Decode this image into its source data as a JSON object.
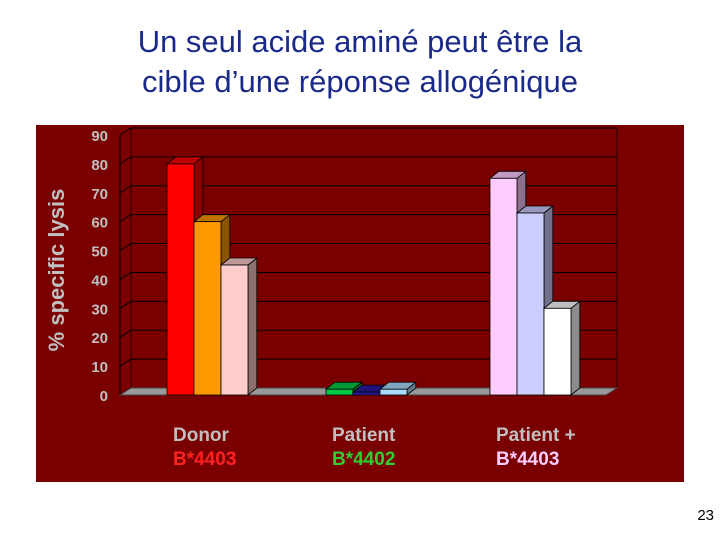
{
  "title_line1": "Un seul acide aminé peut être la",
  "title_line2": "cible d’une réponse allogénique",
  "page_number": "23",
  "colors": {
    "panel_bg": "#7a0000",
    "plot_wall": "#7a0000",
    "floor": "#999999",
    "label_text": "#c0c0c0"
  },
  "chart_data": {
    "type": "bar",
    "title": "",
    "xlabel": "",
    "ylabel": "% specific lysis",
    "ylim": [
      0,
      90
    ],
    "yticks": [
      "0",
      "10",
      "20",
      "30",
      "40",
      "50",
      "60",
      "70",
      "80",
      "90"
    ],
    "grid": true,
    "groups": [
      {
        "label": "Donor",
        "sublabel": "B*4403",
        "sublabel_color": "#ff2020",
        "bars": [
          {
            "value": 80,
            "color": "#ff0000"
          },
          {
            "value": 60,
            "color": "#ff9900"
          },
          {
            "value": 45,
            "color": "#ffcccc"
          }
        ]
      },
      {
        "label": "Patient",
        "sublabel": "B*4402",
        "sublabel_color": "#33cc33",
        "bars": [
          {
            "value": 2,
            "color": "#00cc44"
          },
          {
            "value": 1,
            "color": "#2a1aa0"
          },
          {
            "value": 2,
            "color": "#aaddff"
          }
        ]
      },
      {
        "label": "Patient +",
        "sublabel": "B*4403",
        "sublabel_color": "#ffccff",
        "bars": [
          {
            "value": 75,
            "color": "#ffccff"
          },
          {
            "value": 63,
            "color": "#ccccff"
          },
          {
            "value": 30,
            "color": "#ffffff"
          }
        ]
      }
    ]
  }
}
